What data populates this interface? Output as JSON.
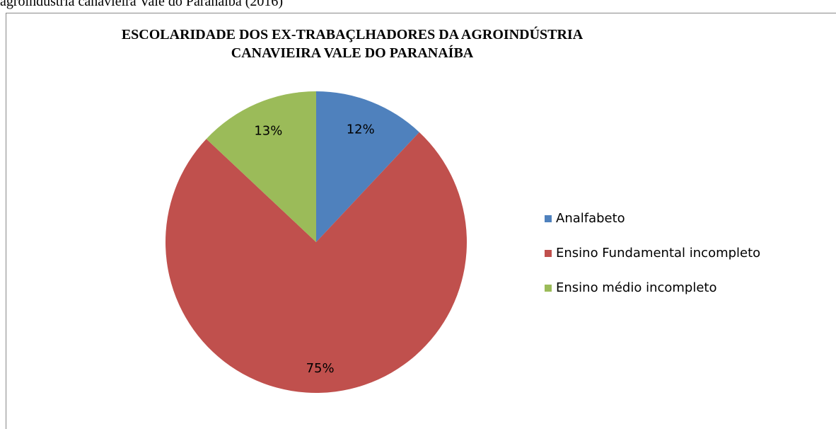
{
  "caption": "agroindústria canavieira Vale do Paranaíba (2016)",
  "chart_data": {
    "type": "pie",
    "title": [
      "ESCOLARIDADE DOS EX-TRABAÇLHADORES DA AGROINDÚSTRIA",
      "CANAVIEIRA  VALE DO PARANAÍBA"
    ],
    "categories": [
      "Analfabeto",
      "Ensino Fundamental incompleto",
      "Ensino médio incompleto"
    ],
    "values": [
      12,
      75,
      13
    ],
    "value_labels": [
      "12%",
      "75%",
      "13%"
    ],
    "colors": [
      "#4f81bd",
      "#c0504d",
      "#9bbb59"
    ],
    "legend": "right"
  }
}
